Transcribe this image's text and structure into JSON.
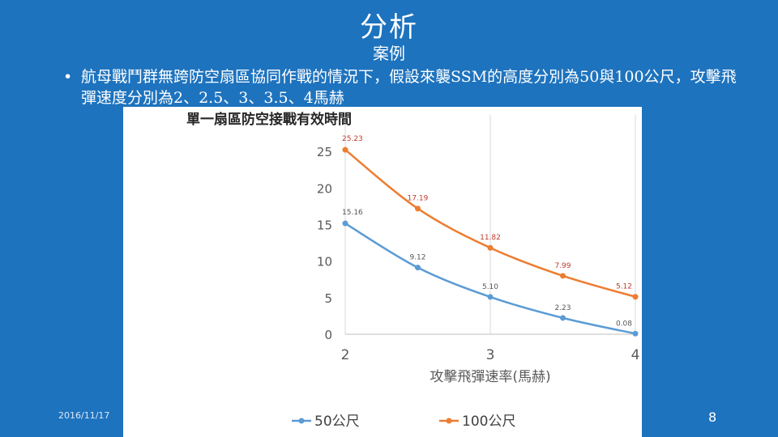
{
  "slide": {
    "title": "分析",
    "subtitle": "案例",
    "bullet_marker": "•",
    "bullet_text": "航母戰鬥群無跨防空扇區協同作戰的情況下，假設來襲SSM的高度分別為50與100公尺，攻擊飛彈速度分別為2、2.5、3、3.5、4馬赫",
    "date": "2016/11/17",
    "page_number": "8"
  },
  "colors": {
    "background": "#1e73be",
    "series_50": "#5b9bd5",
    "series_100": "#ed7d31",
    "label_red": "#c0392b",
    "axis_text": "#595959",
    "grid": "#d9d9d9"
  },
  "chart_data": {
    "type": "line",
    "title": "單一扇區防空接戰有效時間",
    "xlabel": "攻擊飛彈速率(馬赫)",
    "ylabel": "",
    "x": [
      2,
      2.5,
      3,
      3.5,
      4
    ],
    "x_ticks": [
      2,
      3,
      4
    ],
    "y_ticks": [
      0,
      5,
      10,
      15,
      20,
      25
    ],
    "ylim": [
      0,
      30
    ],
    "xlim": [
      2,
      4
    ],
    "grid": "vertical",
    "legend": "bottom",
    "series": [
      {
        "name": "50公尺",
        "values": [
          15.16,
          9.12,
          5.1,
          2.23,
          0.08
        ],
        "labels": [
          "15.16",
          "9.12",
          "5.10",
          "2.23",
          "0.08"
        ]
      },
      {
        "name": "100公尺",
        "values": [
          25.23,
          17.19,
          11.82,
          7.99,
          5.12
        ],
        "labels": [
          "25.23",
          "17.19",
          "11.82",
          "7.99",
          "5.12"
        ]
      }
    ]
  }
}
